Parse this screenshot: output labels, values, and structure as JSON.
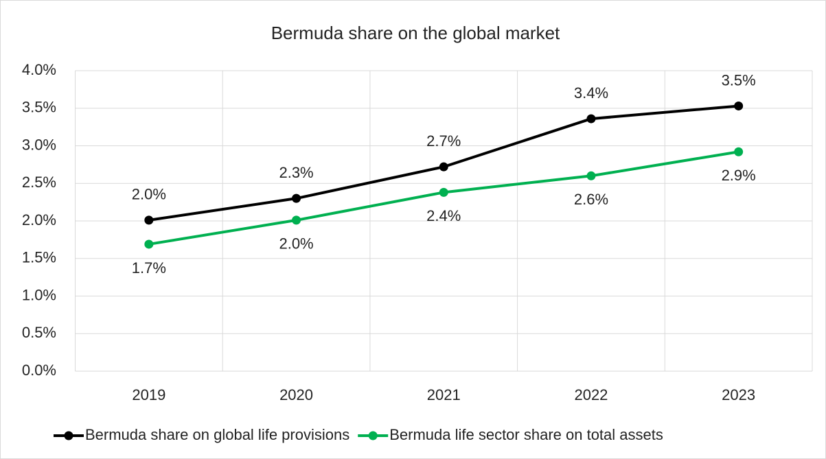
{
  "chart_data": {
    "type": "line",
    "title": "Bermuda share on the global market",
    "categories": [
      "2019",
      "2020",
      "2021",
      "2022",
      "2023"
    ],
    "series": [
      {
        "name": "Bermuda share on global life provisions",
        "color": "#000000",
        "values": [
          2.01,
          2.3,
          2.72,
          3.36,
          3.53
        ],
        "value_labels": [
          "2.0%",
          "2.3%",
          "2.7%",
          "3.4%",
          "3.5%"
        ]
      },
      {
        "name": "Bermuda life sector share on total assets",
        "color": "#00b050",
        "values": [
          1.69,
          2.01,
          2.38,
          2.6,
          2.92
        ],
        "value_labels": [
          "1.7%",
          "2.0%",
          "2.4%",
          "2.6%",
          "2.9%"
        ]
      }
    ],
    "ylim": [
      0,
      4
    ],
    "yticks": [
      {
        "value": 0,
        "label": "0.0%"
      },
      {
        "value": 0.5,
        "label": "0.5%"
      },
      {
        "value": 1,
        "label": "1.0%"
      },
      {
        "value": 1.5,
        "label": "1.5%"
      },
      {
        "value": 2,
        "label": "2.0%"
      },
      {
        "value": 2.5,
        "label": "2.5%"
      },
      {
        "value": 3,
        "label": "3.0%"
      },
      {
        "value": 3.5,
        "label": "3.5%"
      },
      {
        "value": 4,
        "label": "4.0%"
      }
    ],
    "grid": true,
    "legend": "bottom"
  }
}
